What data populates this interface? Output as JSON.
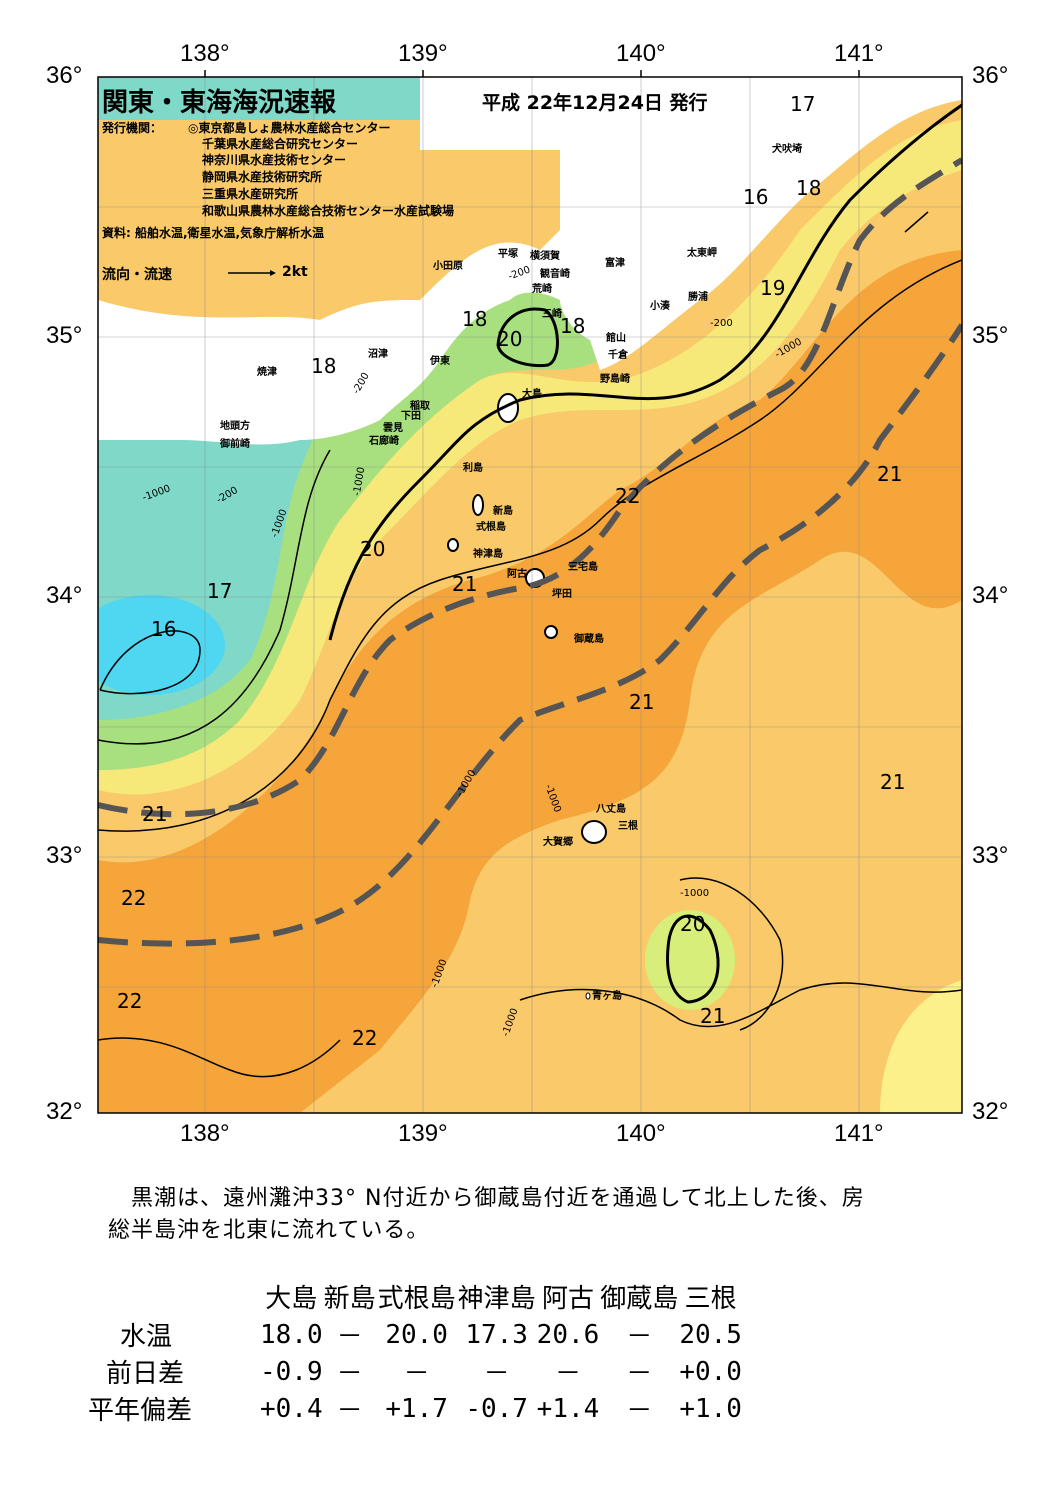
{
  "header": {
    "title": "関東・東海海況速報",
    "date": "平成 22年12月24日 発行"
  },
  "publishers": {
    "label": "発行機関：",
    "items": [
      "◎東京都島しょ農林水産総合センター",
      "千葉県水産総合研究センター",
      "神奈川県水産技術センター",
      "静岡県水産技術研究所",
      "三重県水産研究所",
      "和歌山県農林水産総合技術センター水産試験場"
    ],
    "sources": "資料: 船舶水温,衛星水温,気象庁解析水温"
  },
  "legend": {
    "flow_label": "流向・流速",
    "flow_scale": "2kt"
  },
  "axes": {
    "lon_labels": [
      "138°",
      "139°",
      "140°",
      "141°"
    ],
    "lat_labels": [
      "36°",
      "35°",
      "34°",
      "33°",
      "32°"
    ]
  },
  "place_names": {
    "odawara": "小田原",
    "hiratsuka": "平塚",
    "yokosuka": "横須賀",
    "kannonzaki": "観音崎",
    "arasaki": "荒崎",
    "futtsu": "富津",
    "misaki": "三崎",
    "tateyama": "館山",
    "chikura": "千倉",
    "nojimazaki": "野島崎",
    "taitozaki": "太東岬",
    "katsuura": "勝浦",
    "kominato": "小湊",
    "inubosaki": "犬吠埼",
    "numazu": "沼津",
    "yaizu": "焼津",
    "ito": "伊東",
    "inatori": "稲取",
    "shimoda": "下田",
    "mikomoto": "雲見",
    "irozaki": "石廊崎",
    "jitogata": "地頭方",
    "omaezaki": "御前崎",
    "oshima": "大島",
    "toshima": "利島",
    "niijima": "新島",
    "shikinejima": "式根島",
    "kozushima": "神津島",
    "miyakejima": "三宅島",
    "ako": "阿古",
    "tsubota": "坪田",
    "mikurajima": "御蔵島",
    "hachijojima": "八丈島",
    "mitsune": "三根",
    "okago": "大賀郷",
    "aogashima": "青ヶ島"
  },
  "isotherm_labels": [
    "17",
    "16",
    "18",
    "19",
    "18",
    "18",
    "20",
    "18",
    "20",
    "17",
    "16",
    "21",
    "22",
    "20",
    "21",
    "21",
    "21",
    "21",
    "22",
    "22",
    "20",
    "21",
    "22"
  ],
  "depth_labels": [
    "-200",
    "-1000"
  ],
  "description": "　黒潮は、遠州灘沖33° N付近から御蔵島付近を通過して北上した後、房総半島沖を北東に流れている。",
  "stats": {
    "columns": [
      "大島",
      "新島",
      "式根島",
      "神津島",
      "阿古",
      "御蔵島",
      "三根"
    ],
    "rows": [
      {
        "label": "水温",
        "values": [
          "18.0",
          "－",
          "20.0",
          "17.3",
          "20.6",
          "－",
          "20.5"
        ]
      },
      {
        "label": "前日差",
        "values": [
          "-0.9",
          "－",
          "－",
          "－",
          "－",
          "－",
          "+0.0"
        ]
      },
      {
        "label": "平年偏差",
        "values": [
          "+0.4",
          "－",
          "+1.7",
          "-0.7",
          "+1.4",
          "－",
          "+1.0"
        ]
      }
    ]
  },
  "colors": {
    "cold": "#4fd6f0",
    "cool": "#7fd8c8",
    "mid": "#a8e080",
    "warm_yellow": "#f7e87a",
    "warm": "#f9c96a",
    "hot": "#f5a53a",
    "kuroshio_axis": "#555555",
    "land": "#ffffff"
  }
}
